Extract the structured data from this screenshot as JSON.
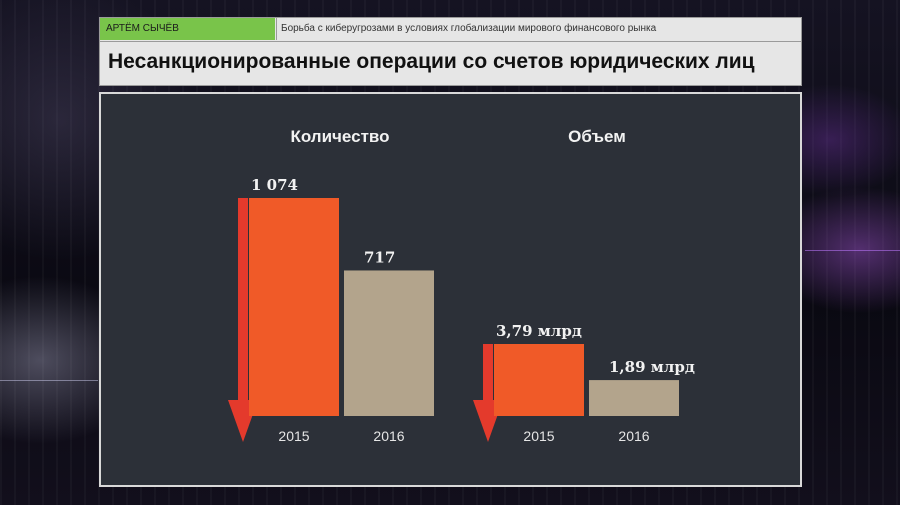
{
  "header": {
    "author": "АРТЁМ СЫЧЁВ",
    "topic": "Борьба с киберугрозами в условиях глобализации мирового финансового рынка",
    "title": "Несанкционированные операции со счетов юридических лиц"
  },
  "colors": {
    "bar_2015": "#f05a28",
    "bar_2016": "#b3a48c",
    "arrow": "#e43a2c",
    "panel": "#2c3038",
    "author_bg": "#79c44a"
  },
  "chart_data": [
    {
      "type": "bar",
      "title": "Количество",
      "categories": [
        "2015",
        "2016"
      ],
      "values": [
        1074,
        717
      ],
      "value_labels": [
        "1 074",
        "717"
      ],
      "decoration": "down-arrow"
    },
    {
      "type": "bar",
      "title": "Объем",
      "categories": [
        "2015",
        "2016"
      ],
      "values": [
        3.79,
        1.89
      ],
      "value_labels": [
        "3,79 млрд",
        "1,89 млрд"
      ],
      "decoration": "down-arrow"
    }
  ]
}
